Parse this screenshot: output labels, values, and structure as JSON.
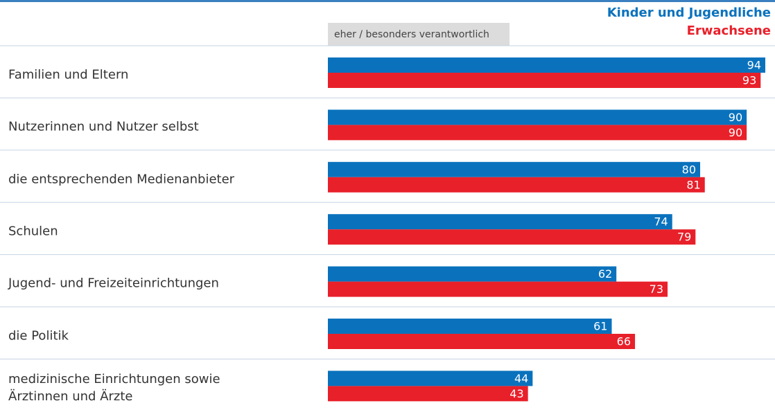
{
  "chart_data": {
    "type": "hbar",
    "subtitle": "eher / besonders verantwortlich",
    "categories": [
      "Familien und Eltern",
      "Nutzerinnen und Nutzer selbst",
      "die entsprechenden Medienanbieter",
      "Schulen",
      "Jugend- und Freizeiteinrichtungen",
      "die Politik",
      "medizinische Einrichtungen sowie\nÄrztinnen und Ärzte"
    ],
    "series": [
      {
        "name": "Kinder und Jugendliche",
        "color": "#0a72bd",
        "values": [
          94,
          90,
          80,
          74,
          62,
          61,
          44
        ]
      },
      {
        "name": "Erwachsene",
        "color": "#e8202a",
        "values": [
          93,
          90,
          81,
          79,
          73,
          66,
          43
        ]
      }
    ],
    "legend": "top-right"
  }
}
